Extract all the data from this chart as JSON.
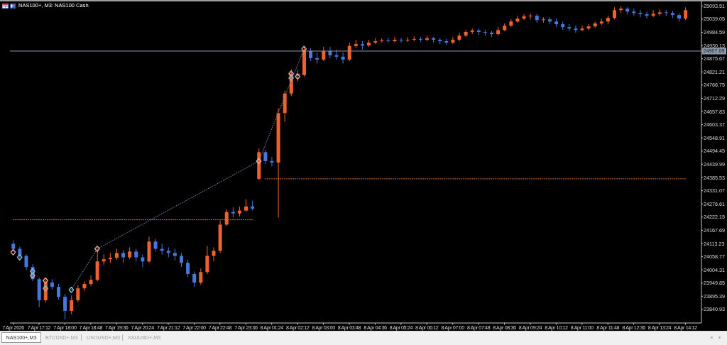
{
  "chart_data": {
    "type": "candlestick",
    "title": "NAS100+, M3: NAS100 Cash",
    "categories": [
      "7 Apr 2026",
      null,
      null,
      null,
      "7 Apr 17:12",
      null,
      null,
      null,
      "7 Apr 18:00",
      null,
      null,
      null,
      "7 Apr 18:48",
      null,
      null,
      null,
      "7 Apr 19:36",
      null,
      null,
      null,
      "7 Apr 20:24",
      null,
      null,
      null,
      "7 Apr 21:12",
      null,
      null,
      null,
      "7 Apr 22:00",
      null,
      null,
      null,
      "7 Apr 22:48",
      null,
      null,
      null,
      "7 Apr 23:36",
      null,
      null,
      null,
      "8 Apr 01:24",
      null,
      null,
      null,
      "8 Apr 02:12",
      null,
      null,
      null,
      "8 Apr 03:00",
      null,
      null,
      null,
      "8 Apr 03:48",
      null,
      null,
      null,
      "8 Apr 04:36",
      null,
      null,
      null,
      "8 Apr 05:24",
      null,
      null,
      null,
      "8 Apr 06:12",
      null,
      null,
      null,
      "8 Apr 07:00",
      null,
      null,
      null,
      "8 Apr 07:48",
      null,
      null,
      null,
      "8 Apr 08:36",
      null,
      null,
      null,
      "8 Apr 09:24",
      null,
      null,
      null,
      "8 Apr 10:12",
      null,
      null,
      null,
      "8 Apr 11:00",
      null,
      null,
      null,
      "8 Apr 11:48",
      null,
      null,
      null,
      "8 Apr 12:36",
      null,
      null,
      null,
      "8 Apr 13:24",
      null,
      null,
      null,
      "8 Apr 14:12"
    ],
    "ohlc": [
      [
        24112,
        24126,
        24080,
        24091
      ],
      [
        24091,
        24100,
        24051,
        24062
      ],
      [
        24062,
        24068,
        24004,
        24016
      ],
      [
        24016,
        24027,
        23957,
        23966
      ],
      [
        23966,
        23972,
        23850,
        23879
      ],
      [
        23879,
        23963,
        23870,
        23952
      ],
      [
        23952,
        23966,
        23922,
        23934
      ],
      [
        23934,
        23946,
        23882,
        23893
      ],
      [
        23893,
        23905,
        23800,
        23835
      ],
      [
        23835,
        23899,
        23821,
        23879
      ],
      [
        23879,
        23940,
        23870,
        23928
      ],
      [
        23928,
        23957,
        23917,
        23946
      ],
      [
        23946,
        23981,
        23937,
        23963
      ],
      [
        23963,
        24091,
        23957,
        24039
      ],
      [
        24039,
        24068,
        24024,
        24048
      ],
      [
        24048,
        24074,
        24033,
        24054
      ],
      [
        24054,
        24091,
        24045,
        24074
      ],
      [
        24074,
        24086,
        24033,
        24056
      ],
      [
        24056,
        24097,
        24048,
        24080
      ],
      [
        24080,
        24091,
        24039,
        24056
      ],
      [
        24056,
        24068,
        24016,
        24039
      ],
      [
        24039,
        24141,
        24033,
        24121
      ],
      [
        24121,
        24132,
        24080,
        24091
      ],
      [
        24091,
        24112,
        24068,
        24083
      ],
      [
        24083,
        24097,
        24056,
        24074
      ],
      [
        24074,
        24091,
        24045,
        24062
      ],
      [
        24062,
        24074,
        24016,
        24033
      ],
      [
        24033,
        24045,
        23975,
        23987
      ],
      [
        23987,
        23998,
        23934,
        23952
      ],
      [
        23952,
        24010,
        23943,
        23995
      ],
      [
        23995,
        24103,
        23987,
        24062
      ],
      [
        24062,
        24097,
        24039,
        24083
      ],
      [
        24083,
        24208,
        24074,
        24191
      ],
      [
        24191,
        24255,
        24185,
        24243
      ],
      [
        24243,
        24263,
        24220,
        24237
      ],
      [
        24237,
        24266,
        24225,
        24249
      ],
      [
        24249,
        24295,
        24243,
        24266
      ],
      [
        24266,
        24290,
        24249,
        24257
      ],
      [
        24380,
        24505,
        24374,
        24490
      ],
      [
        24490,
        24499,
        24441,
        24453
      ],
      [
        24453,
        24470,
        24432,
        24447
      ],
      [
        24447,
        24671,
        24220,
        24651
      ],
      [
        24651,
        24744,
        24616,
        24732
      ],
      [
        24732,
        24831,
        24721,
        24814
      ],
      [
        24814,
        24831,
        24782,
        24808
      ],
      [
        24808,
        24925,
        24802,
        24907
      ],
      [
        24907,
        24919,
        24866,
        24878
      ],
      [
        24878,
        24901,
        24855,
        24872
      ],
      [
        24872,
        24925,
        24866,
        24907
      ],
      [
        24907,
        24925,
        24878,
        24890
      ],
      [
        24890,
        24913,
        24872,
        24884
      ],
      [
        24884,
        24901,
        24855,
        24872
      ],
      [
        24872,
        24942,
        24866,
        24928
      ],
      [
        24928,
        24954,
        24919,
        24936
      ],
      [
        24936,
        24948,
        24913,
        24930
      ],
      [
        24930,
        24954,
        24925,
        24942
      ],
      [
        24942,
        24960,
        24936,
        24948
      ],
      [
        24948,
        24960,
        24942,
        24951
      ],
      [
        24951,
        24962,
        24942,
        24948
      ],
      [
        24948,
        24965,
        24942,
        24954
      ],
      [
        24954,
        24962,
        24942,
        24951
      ],
      [
        24951,
        24965,
        24945,
        24954
      ],
      [
        24954,
        24968,
        24948,
        24957
      ],
      [
        24957,
        24965,
        24945,
        24954
      ],
      [
        24954,
        24971,
        24948,
        24960
      ],
      [
        24960,
        24965,
        24942,
        24954
      ],
      [
        24954,
        24960,
        24936,
        24948
      ],
      [
        24948,
        24957,
        24933,
        24942
      ],
      [
        24942,
        24965,
        24936,
        24954
      ],
      [
        24954,
        24983,
        24948,
        24971
      ],
      [
        24971,
        24994,
        24965,
        24986
      ],
      [
        24986,
        25000,
        24977,
        24992
      ],
      [
        24992,
        25000,
        24974,
        24986
      ],
      [
        24986,
        24994,
        24971,
        24983
      ],
      [
        24983,
        24989,
        24965,
        24977
      ],
      [
        24977,
        25006,
        24971,
        24994
      ],
      [
        24994,
        25021,
        24989,
        25012
      ],
      [
        25012,
        25038,
        25006,
        25029
      ],
      [
        25029,
        25053,
        25024,
        25041
      ],
      [
        25041,
        25059,
        25035,
        25050
      ],
      [
        25050,
        25062,
        25038,
        25053
      ],
      [
        25053,
        25059,
        25024,
        25035
      ],
      [
        25035,
        25047,
        25024,
        25038
      ],
      [
        25038,
        25047,
        25018,
        25029
      ],
      [
        25029,
        25041,
        25006,
        25018
      ],
      [
        25018,
        25029,
        24994,
        25006
      ],
      [
        25006,
        25018,
        24989,
        25000
      ],
      [
        25000,
        25012,
        24983,
        24994
      ],
      [
        24994,
        25012,
        24989,
        25000
      ],
      [
        25000,
        25018,
        24994,
        25009
      ],
      [
        25009,
        25029,
        25003,
        25021
      ],
      [
        25021,
        25041,
        25015,
        25029
      ],
      [
        25029,
        25053,
        25018,
        25044
      ],
      [
        25044,
        25088,
        25038,
        25076
      ],
      [
        25076,
        25091,
        25064,
        25082
      ],
      [
        25082,
        25088,
        25059,
        25070
      ],
      [
        25070,
        25082,
        25053,
        25064
      ],
      [
        25064,
        25076,
        25047,
        25059
      ],
      [
        25059,
        25070,
        25041,
        25053
      ],
      [
        25053,
        25076,
        25047,
        25061
      ],
      [
        25061,
        25079,
        25053,
        25067
      ],
      [
        25067,
        25076,
        25053,
        25064
      ],
      [
        25064,
        25073,
        25044,
        25056
      ],
      [
        25056,
        25064,
        25029,
        25041
      ],
      [
        25041,
        25088,
        25035,
        25076
      ]
    ],
    "colors": [
      "#4677dd",
      "#4677dd",
      "#4677dd",
      "#4677dd",
      "#4677dd",
      "#f0622d",
      "#4677dd",
      "#4677dd",
      "#4677dd",
      "#f0622d",
      "#f0622d",
      "#f0622d",
      "#f0622d",
      "#f0622d",
      "#f0622d",
      "#f0622d",
      "#f0622d",
      "#4677dd",
      "#f0622d",
      "#4677dd",
      "#4677dd",
      "#f0622d",
      "#4677dd",
      "#4677dd",
      "#4677dd",
      "#4677dd",
      "#4677dd",
      "#4677dd",
      "#4677dd",
      "#f0622d",
      "#f0622d",
      "#f0622d",
      "#f0622d",
      "#f0622d",
      "#4677dd",
      "#f0622d",
      "#f0622d",
      "#4677dd",
      "#f0622d",
      "#4677dd",
      "#4677dd",
      "#f0622d",
      "#f0622d",
      "#f0622d",
      "#4677dd",
      "#f0622d",
      "#4677dd",
      "#4677dd",
      "#f0622d",
      "#4677dd",
      "#4677dd",
      "#4677dd",
      "#f0622d",
      "#f0622d",
      "#4677dd",
      "#f0622d",
      "#f0622d",
      "#f0622d",
      "#4677dd",
      "#f0622d",
      "#4677dd",
      "#f0622d",
      "#f0622d",
      "#4677dd",
      "#f0622d",
      "#4677dd",
      "#4677dd",
      "#4677dd",
      "#f0622d",
      "#f0622d",
      "#f0622d",
      "#f0622d",
      "#4677dd",
      "#4677dd",
      "#4677dd",
      "#f0622d",
      "#f0622d",
      "#f0622d",
      "#f0622d",
      "#f0622d",
      "#f0622d",
      "#4677dd",
      "#f0622d",
      "#4677dd",
      "#4677dd",
      "#4677dd",
      "#4677dd",
      "#4677dd",
      "#f0622d",
      "#f0622d",
      "#f0622d",
      "#f0622d",
      "#f0622d",
      "#f0622d",
      "#f0622d",
      "#4677dd",
      "#4677dd",
      "#4677dd",
      "#4677dd",
      "#f0622d",
      "#f0622d",
      "#4677dd",
      "#4677dd",
      "#4677dd",
      "#f0622d"
    ],
    "series": [
      {
        "type": "line",
        "color": "#e8742f",
        "line_style": "dotted",
        "marker": "none",
        "values": [
          24211,
          24211,
          24211,
          24211,
          24211,
          24211,
          24211,
          24211,
          24211,
          24211,
          24211,
          24211,
          24211,
          24211,
          24211,
          24211,
          24211,
          24211,
          24211,
          24211,
          24211,
          24211,
          24211,
          24211,
          24211,
          24211,
          24211,
          24211,
          24211,
          24211,
          24211,
          24211,
          24211,
          24211,
          24211,
          24211,
          24211,
          24211,
          null,
          null,
          null,
          null,
          null,
          null,
          null,
          null,
          null,
          null,
          null,
          null,
          null,
          null,
          null,
          null,
          null,
          null,
          null,
          null,
          null,
          null,
          null,
          null,
          null,
          null,
          null,
          null,
          null,
          null,
          null,
          null,
          null,
          null,
          null,
          null,
          null,
          null,
          null,
          null,
          null,
          null,
          null,
          null,
          null,
          null,
          null,
          null,
          null,
          null,
          null,
          null,
          null,
          null,
          null,
          null,
          null,
          null,
          null,
          null,
          null,
          null,
          null,
          null,
          null,
          null,
          null
        ]
      },
      {
        "type": "line",
        "color": "#e8742f",
        "line_style": "dotted",
        "marker": "none",
        "values": [
          null,
          null,
          null,
          null,
          null,
          null,
          null,
          null,
          null,
          null,
          null,
          null,
          null,
          null,
          null,
          null,
          null,
          null,
          null,
          null,
          null,
          null,
          null,
          null,
          null,
          null,
          null,
          null,
          null,
          null,
          null,
          null,
          null,
          null,
          null,
          null,
          null,
          null,
          null,
          24380,
          24380,
          24380,
          24380,
          24380,
          24380,
          24380,
          24380,
          24380,
          24380,
          24380,
          24380,
          24380,
          24380,
          24380,
          24380,
          24380,
          24380,
          24380,
          24380,
          24380,
          24380,
          24380,
          24380,
          24380,
          24380,
          24380,
          24380,
          24380,
          24380,
          24380,
          24380,
          24380,
          24380,
          24380,
          24380,
          24380,
          24380,
          24380,
          24380,
          24380,
          24380,
          24380,
          24380,
          24380,
          24380,
          24380,
          24380,
          24380,
          24380,
          24380,
          24380,
          24380,
          24380,
          24380,
          24380,
          24380,
          24380,
          24380,
          24380,
          24380,
          24380,
          24380,
          24380,
          24380,
          24380
        ]
      },
      {
        "type": "line",
        "color": "#6f82ad",
        "line_style": "dotted",
        "marker": "none",
        "values": [
          null,
          null,
          null,
          null,
          null,
          null,
          null,
          null,
          null,
          23922,
          null,
          null,
          null,
          24091,
          null,
          null,
          null,
          null,
          null,
          null,
          null,
          null,
          null,
          null,
          null,
          null,
          null,
          null,
          null,
          null,
          null,
          null,
          null,
          null,
          null,
          null,
          null,
          null,
          24453,
          null,
          null,
          null,
          null,
          null,
          null,
          24916,
          null,
          null,
          null,
          null,
          null,
          null,
          null,
          null,
          null,
          null,
          null,
          null,
          null,
          null,
          null,
          null,
          null,
          null,
          null,
          null,
          null,
          null,
          null,
          null,
          null,
          null,
          null,
          null,
          null,
          null,
          null,
          null,
          null,
          null,
          null,
          null,
          null,
          null,
          null,
          null,
          null,
          null,
          null,
          null,
          null,
          null,
          null,
          null,
          null,
          null,
          null,
          null,
          null,
          null,
          null,
          null,
          null,
          null,
          null
        ]
      },
      {
        "type": "scatter",
        "color": "#eaa596",
        "marker": "diamond",
        "values": [
          24077,
          null,
          null,
          23981,
          null,
          23960,
          null,
          null,
          null,
          null,
          null,
          null,
          null,
          24091,
          null,
          null,
          null,
          null,
          null,
          null,
          null,
          null,
          null,
          null,
          null,
          null,
          null,
          null,
          null,
          null,
          null,
          null,
          null,
          null,
          null,
          null,
          null,
          null,
          24453,
          null,
          null,
          null,
          null,
          24814,
          24802,
          24916,
          null,
          null,
          null,
          null,
          null,
          null,
          null,
          null,
          null,
          null,
          null,
          null,
          null,
          null,
          null,
          null,
          null,
          null,
          null,
          null,
          null,
          null,
          null,
          null,
          null,
          null,
          null,
          null,
          null,
          null,
          null,
          null,
          null,
          null,
          null,
          null,
          null,
          null,
          null,
          null,
          null,
          null,
          null,
          null,
          null,
          null,
          null,
          null,
          null,
          null,
          null,
          null,
          null,
          null,
          null,
          null,
          null,
          null,
          null
        ]
      },
      {
        "type": "scatter",
        "color": "#7fbfcf",
        "marker": "diamond",
        "values": [
          null,
          24056,
          null,
          23998,
          null,
          23928,
          null,
          null,
          null,
          23922,
          null,
          null,
          null,
          null,
          null,
          null,
          null,
          null,
          null,
          null,
          null,
          null,
          null,
          null,
          null,
          null,
          null,
          null,
          null,
          null,
          null,
          null,
          null,
          null,
          null,
          null,
          null,
          null,
          null,
          null,
          null,
          null,
          null,
          24796,
          null,
          null,
          null,
          null,
          null,
          null,
          null,
          null,
          null,
          null,
          null,
          null,
          null,
          null,
          null,
          null,
          null,
          null,
          null,
          null,
          null,
          null,
          null,
          null,
          null,
          null,
          null,
          null,
          null,
          null,
          null,
          null,
          null,
          null,
          null,
          null,
          null,
          null,
          null,
          null,
          null,
          null,
          null,
          null,
          null,
          null,
          null,
          null,
          null,
          null,
          null,
          null,
          null,
          null,
          null,
          null,
          null,
          null,
          null,
          null,
          null
        ]
      }
    ],
    "ylim": [
      23785,
      25112
    ],
    "yticks": [
      23840.93,
      23895.39,
      23949.85,
      24004.31,
      24058.77,
      24113.23,
      24167.69,
      24222.15,
      24276.61,
      24331.07,
      24385.53,
      24439.99,
      24494.45,
      24548.91,
      24603.37,
      24657.83,
      24712.29,
      24766.75,
      24821.21,
      24875.67,
      24930.13,
      24984.59,
      25039.05,
      25093.51
    ],
    "ref_lines": [
      {
        "axis": "y",
        "value": 24907.09,
        "label": "24907.09",
        "color": "#8d99a8"
      }
    ],
    "annotations": [
      "NAS100+,M3",
      "BTCUSD+,M3",
      "USOUSD+,M3",
      "XAUUSD+,M3"
    ]
  }
}
